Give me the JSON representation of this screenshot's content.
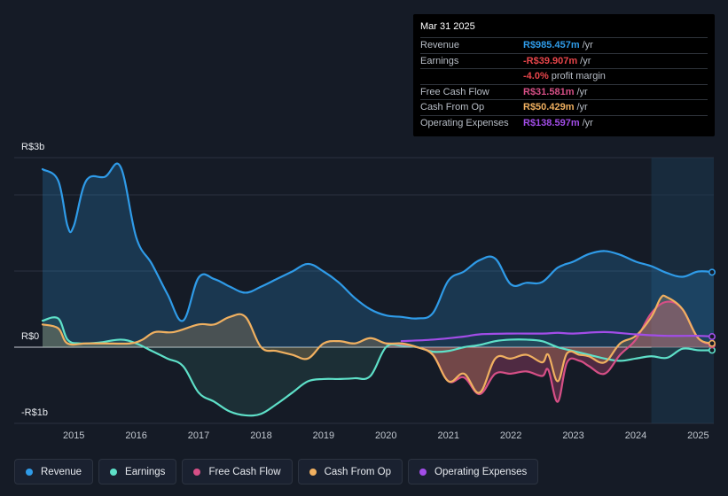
{
  "tooltip": {
    "date": "Mar 31 2025",
    "rows": [
      {
        "label": "Revenue",
        "value": "R$985.457m",
        "unit": "/yr",
        "color": "#2f9be8"
      },
      {
        "label": "Earnings",
        "value": "-R$39.907m",
        "unit": "/yr",
        "color": "#e8454a"
      },
      {
        "label": "",
        "value": "-4.0%",
        "unit": "profit margin",
        "color": "#e8454a"
      },
      {
        "label": "Free Cash Flow",
        "value": "R$31.581m",
        "unit": "/yr",
        "color": "#d64f86"
      },
      {
        "label": "Cash From Op",
        "value": "R$50.429m",
        "unit": "/yr",
        "color": "#f0b060"
      },
      {
        "label": "Operating Expenses",
        "value": "R$138.597m",
        "unit": "/yr",
        "color": "#a24de8"
      }
    ]
  },
  "legend": [
    {
      "label": "Revenue",
      "color": "#2f9be8"
    },
    {
      "label": "Earnings",
      "color": "#5ee0c8"
    },
    {
      "label": "Free Cash Flow",
      "color": "#d64f86"
    },
    {
      "label": "Cash From Op",
      "color": "#f0b060"
    },
    {
      "label": "Operating Expenses",
      "color": "#a24de8"
    }
  ],
  "chart_data": {
    "type": "area",
    "title": "",
    "y_tick_labels": [
      "R$3b",
      "R$0",
      "-R$1b"
    ],
    "ylim": [
      -1,
      2.5
    ],
    "xlim": [
      2014.5,
      2025.25
    ],
    "forecast_shade_start": 2024.25,
    "x_tick_labels": [
      "2015",
      "2016",
      "2017",
      "2018",
      "2019",
      "2020",
      "2021",
      "2022",
      "2023",
      "2024",
      "2025"
    ],
    "x_tick_values": [
      2015,
      2016,
      2017,
      2018,
      2019,
      2020,
      2021,
      2022,
      2023,
      2024,
      2025
    ],
    "series": [
      {
        "name": "Revenue",
        "color": "#2f9be8",
        "fill": true,
        "points": [
          [
            2014.5,
            2.35
          ],
          [
            2014.75,
            2.2
          ],
          [
            2014.9,
            1.6
          ],
          [
            2015.0,
            1.6
          ],
          [
            2015.2,
            2.2
          ],
          [
            2015.5,
            2.25
          ],
          [
            2015.75,
            2.38
          ],
          [
            2016.0,
            1.45
          ],
          [
            2016.25,
            1.1
          ],
          [
            2016.5,
            0.7
          ],
          [
            2016.75,
            0.35
          ],
          [
            2017.0,
            0.92
          ],
          [
            2017.25,
            0.9
          ],
          [
            2017.5,
            0.8
          ],
          [
            2017.75,
            0.72
          ],
          [
            2018.0,
            0.8
          ],
          [
            2018.25,
            0.9
          ],
          [
            2018.5,
            1.0
          ],
          [
            2018.75,
            1.1
          ],
          [
            2019.0,
            1.0
          ],
          [
            2019.25,
            0.85
          ],
          [
            2019.5,
            0.65
          ],
          [
            2019.75,
            0.5
          ],
          [
            2020.0,
            0.42
          ],
          [
            2020.25,
            0.4
          ],
          [
            2020.5,
            0.38
          ],
          [
            2020.75,
            0.45
          ],
          [
            2021.0,
            0.88
          ],
          [
            2021.25,
            1.0
          ],
          [
            2021.5,
            1.15
          ],
          [
            2021.75,
            1.17
          ],
          [
            2022.0,
            0.83
          ],
          [
            2022.25,
            0.85
          ],
          [
            2022.5,
            0.86
          ],
          [
            2022.75,
            1.05
          ],
          [
            2023.0,
            1.13
          ],
          [
            2023.25,
            1.23
          ],
          [
            2023.5,
            1.27
          ],
          [
            2023.75,
            1.22
          ],
          [
            2024.0,
            1.13
          ],
          [
            2024.25,
            1.07
          ],
          [
            2024.5,
            0.98
          ],
          [
            2024.75,
            0.93
          ],
          [
            2025.0,
            1.0
          ],
          [
            2025.25,
            0.99
          ]
        ]
      },
      {
        "name": "Earnings",
        "color": "#5ee0c8",
        "fill": true,
        "points": [
          [
            2014.5,
            0.35
          ],
          [
            2014.75,
            0.38
          ],
          [
            2014.9,
            0.1
          ],
          [
            2015.1,
            0.05
          ],
          [
            2015.4,
            0.06
          ],
          [
            2015.75,
            0.1
          ],
          [
            2016.0,
            0.05
          ],
          [
            2016.25,
            -0.05
          ],
          [
            2016.5,
            -0.15
          ],
          [
            2016.75,
            -0.25
          ],
          [
            2017.0,
            -0.6
          ],
          [
            2017.25,
            -0.72
          ],
          [
            2017.5,
            -0.85
          ],
          [
            2017.75,
            -0.9
          ],
          [
            2018.0,
            -0.88
          ],
          [
            2018.25,
            -0.75
          ],
          [
            2018.5,
            -0.6
          ],
          [
            2018.75,
            -0.45
          ],
          [
            2019.0,
            -0.42
          ],
          [
            2019.25,
            -0.42
          ],
          [
            2019.5,
            -0.41
          ],
          [
            2019.75,
            -0.38
          ],
          [
            2020.0,
            0.0
          ],
          [
            2020.25,
            0.02
          ],
          [
            2020.5,
            0.0
          ],
          [
            2020.75,
            -0.06
          ],
          [
            2021.0,
            -0.05
          ],
          [
            2021.25,
            0.0
          ],
          [
            2021.5,
            0.03
          ],
          [
            2021.75,
            0.08
          ],
          [
            2022.0,
            0.1
          ],
          [
            2022.25,
            0.1
          ],
          [
            2022.5,
            0.08
          ],
          [
            2022.75,
            0.0
          ],
          [
            2023.0,
            -0.05
          ],
          [
            2023.25,
            -0.1
          ],
          [
            2023.5,
            -0.15
          ],
          [
            2023.75,
            -0.18
          ],
          [
            2024.0,
            -0.15
          ],
          [
            2024.25,
            -0.12
          ],
          [
            2024.5,
            -0.14
          ],
          [
            2024.75,
            -0.02
          ],
          [
            2025.0,
            -0.04
          ],
          [
            2025.25,
            -0.04
          ]
        ]
      },
      {
        "name": "Free Cash Flow",
        "color": "#d64f86",
        "fill": true,
        "points": [
          [
            2020.0,
            0.05
          ],
          [
            2020.25,
            0.04
          ],
          [
            2020.5,
            0.0
          ],
          [
            2020.75,
            -0.1
          ],
          [
            2021.0,
            -0.45
          ],
          [
            2021.25,
            -0.4
          ],
          [
            2021.5,
            -0.62
          ],
          [
            2021.75,
            -0.35
          ],
          [
            2022.0,
            -0.35
          ],
          [
            2022.25,
            -0.32
          ],
          [
            2022.5,
            -0.38
          ],
          [
            2022.6,
            -0.3
          ],
          [
            2022.75,
            -0.72
          ],
          [
            2022.9,
            -0.2
          ],
          [
            2023.1,
            -0.18
          ],
          [
            2023.25,
            -0.25
          ],
          [
            2023.5,
            -0.35
          ],
          [
            2023.75,
            -0.1
          ],
          [
            2024.0,
            0.1
          ],
          [
            2024.25,
            0.45
          ],
          [
            2024.5,
            0.6
          ],
          [
            2024.75,
            0.5
          ],
          [
            2025.0,
            0.12
          ],
          [
            2025.25,
            0.03
          ]
        ]
      },
      {
        "name": "Cash From Op",
        "color": "#f0b060",
        "fill": true,
        "points": [
          [
            2014.5,
            0.3
          ],
          [
            2014.75,
            0.25
          ],
          [
            2014.9,
            0.05
          ],
          [
            2015.2,
            0.05
          ],
          [
            2015.5,
            0.05
          ],
          [
            2015.9,
            0.05
          ],
          [
            2016.1,
            0.1
          ],
          [
            2016.3,
            0.2
          ],
          [
            2016.6,
            0.2
          ],
          [
            2017.0,
            0.3
          ],
          [
            2017.25,
            0.3
          ],
          [
            2017.5,
            0.4
          ],
          [
            2017.75,
            0.4
          ],
          [
            2018.0,
            0.0
          ],
          [
            2018.25,
            -0.05
          ],
          [
            2018.5,
            -0.1
          ],
          [
            2018.75,
            -0.15
          ],
          [
            2019.0,
            0.05
          ],
          [
            2019.25,
            0.08
          ],
          [
            2019.5,
            0.05
          ],
          [
            2019.75,
            0.12
          ],
          [
            2020.0,
            0.05
          ],
          [
            2020.25,
            0.05
          ],
          [
            2020.5,
            0.0
          ],
          [
            2020.75,
            -0.1
          ],
          [
            2021.0,
            -0.45
          ],
          [
            2021.25,
            -0.35
          ],
          [
            2021.5,
            -0.6
          ],
          [
            2021.75,
            -0.15
          ],
          [
            2022.0,
            -0.15
          ],
          [
            2022.25,
            -0.1
          ],
          [
            2022.5,
            -0.2
          ],
          [
            2022.6,
            -0.1
          ],
          [
            2022.75,
            -0.45
          ],
          [
            2022.9,
            -0.08
          ],
          [
            2023.1,
            -0.1
          ],
          [
            2023.25,
            -0.12
          ],
          [
            2023.5,
            -0.2
          ],
          [
            2023.75,
            0.05
          ],
          [
            2024.0,
            0.15
          ],
          [
            2024.25,
            0.4
          ],
          [
            2024.4,
            0.65
          ],
          [
            2024.5,
            0.66
          ],
          [
            2024.75,
            0.5
          ],
          [
            2025.0,
            0.12
          ],
          [
            2025.25,
            0.05
          ]
        ]
      },
      {
        "name": "Operating Expenses",
        "color": "#a24de8",
        "fill": false,
        "points": [
          [
            2020.25,
            0.08
          ],
          [
            2020.75,
            0.1
          ],
          [
            2021.25,
            0.14
          ],
          [
            2021.5,
            0.17
          ],
          [
            2022.0,
            0.18
          ],
          [
            2022.5,
            0.18
          ],
          [
            2022.75,
            0.19
          ],
          [
            2023.0,
            0.18
          ],
          [
            2023.5,
            0.2
          ],
          [
            2024.0,
            0.17
          ],
          [
            2024.5,
            0.15
          ],
          [
            2025.0,
            0.15
          ],
          [
            2025.25,
            0.14
          ]
        ]
      }
    ]
  }
}
